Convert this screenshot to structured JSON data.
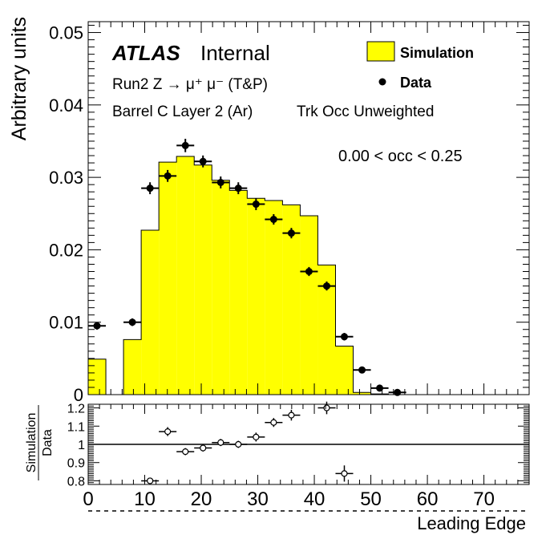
{
  "chart_data": [
    {
      "type": "bar",
      "role": "main",
      "ylabel": "Arbitrary units",
      "xlabel": "Leading Edge",
      "xlim": [
        0,
        78
      ],
      "ylim": [
        0,
        0.0515
      ],
      "x_ticks": [
        "0",
        "10",
        "20",
        "30",
        "40",
        "50",
        "60",
        "70"
      ],
      "y_ticks": [
        "0",
        "0.01",
        "0.02",
        "0.03",
        "0.04",
        "0.05"
      ],
      "y_tick_values": [
        0,
        0.01,
        0.02,
        0.03,
        0.04,
        0.05
      ],
      "atlas_label": "ATLAS",
      "atlas_status": "Internal",
      "process_label": "Run2 Z → μ⁺ μ⁻ (T&P)",
      "region_label": "Barrel C Layer 2 (Ar)",
      "weight_label": "Trk Occ Unweighted",
      "occupancy_label": "0.00 < occ < 0.25",
      "legend": {
        "simulation_label": "Simulation",
        "data_label": "Data",
        "simulation_color": "#ffff00",
        "position": "top-right"
      },
      "bin_width": 3.125,
      "simulation": {
        "name": "Simulation",
        "bin_low_edges": [
          0,
          3.125,
          6.25,
          9.375,
          12.5,
          15.625,
          18.75,
          21.875,
          25,
          28.125,
          31.25,
          34.375,
          37.5,
          40.625,
          43.75,
          46.875,
          50,
          53.125
        ],
        "values": [
          0.0049,
          0.0,
          0.0076,
          0.0227,
          0.0321,
          0.0329,
          0.0317,
          0.0296,
          0.0282,
          0.0271,
          0.0268,
          0.0262,
          0.0247,
          0.0179,
          0.0067,
          0.0003,
          0.0001,
          0.0
        ]
      },
      "data": {
        "name": "Data",
        "x": [
          1.56,
          7.81,
          10.94,
          14.06,
          17.19,
          20.31,
          23.44,
          26.56,
          29.69,
          32.81,
          35.94,
          39.06,
          42.19,
          45.31,
          48.44,
          51.56,
          54.69
        ],
        "y": [
          0.0095,
          0.01,
          0.0285,
          0.0302,
          0.0344,
          0.0322,
          0.0293,
          0.0285,
          0.0263,
          0.0242,
          0.0223,
          0.017,
          0.015,
          0.008,
          0.0034,
          0.0009,
          0.0003
        ],
        "yerr": [
          0.0003,
          0.0003,
          0.0006,
          0.0006,
          0.0007,
          0.0006,
          0.0006,
          0.0006,
          0.0006,
          0.0005,
          0.0005,
          0.0004,
          0.0004,
          0.0003,
          0.0002,
          0.0001,
          0.0001
        ]
      }
    },
    {
      "type": "scatter",
      "role": "ratio",
      "ylabel_top": "Simulation",
      "ylabel_bottom": "Data",
      "xlim": [
        0,
        78
      ],
      "ylim": [
        0.78,
        1.22
      ],
      "y_ticks": [
        "0.8",
        "0.9",
        "1",
        "1.1",
        "1.2"
      ],
      "y_tick_values": [
        0.8,
        0.9,
        1.0,
        1.1,
        1.2
      ],
      "reference_line": 1.0,
      "x": [
        10.94,
        14.06,
        17.19,
        20.31,
        23.44,
        26.56,
        29.69,
        32.81,
        35.94,
        42.19,
        45.31
      ],
      "y": [
        0.8,
        1.07,
        0.96,
        0.98,
        1.01,
        1.0,
        1.04,
        1.12,
        1.16,
        1.2,
        0.84
      ],
      "yerr": [
        0.01,
        0.02,
        0.015,
        0.015,
        0.015,
        0.015,
        0.02,
        0.02,
        0.025,
        0.03,
        0.04
      ]
    }
  ]
}
